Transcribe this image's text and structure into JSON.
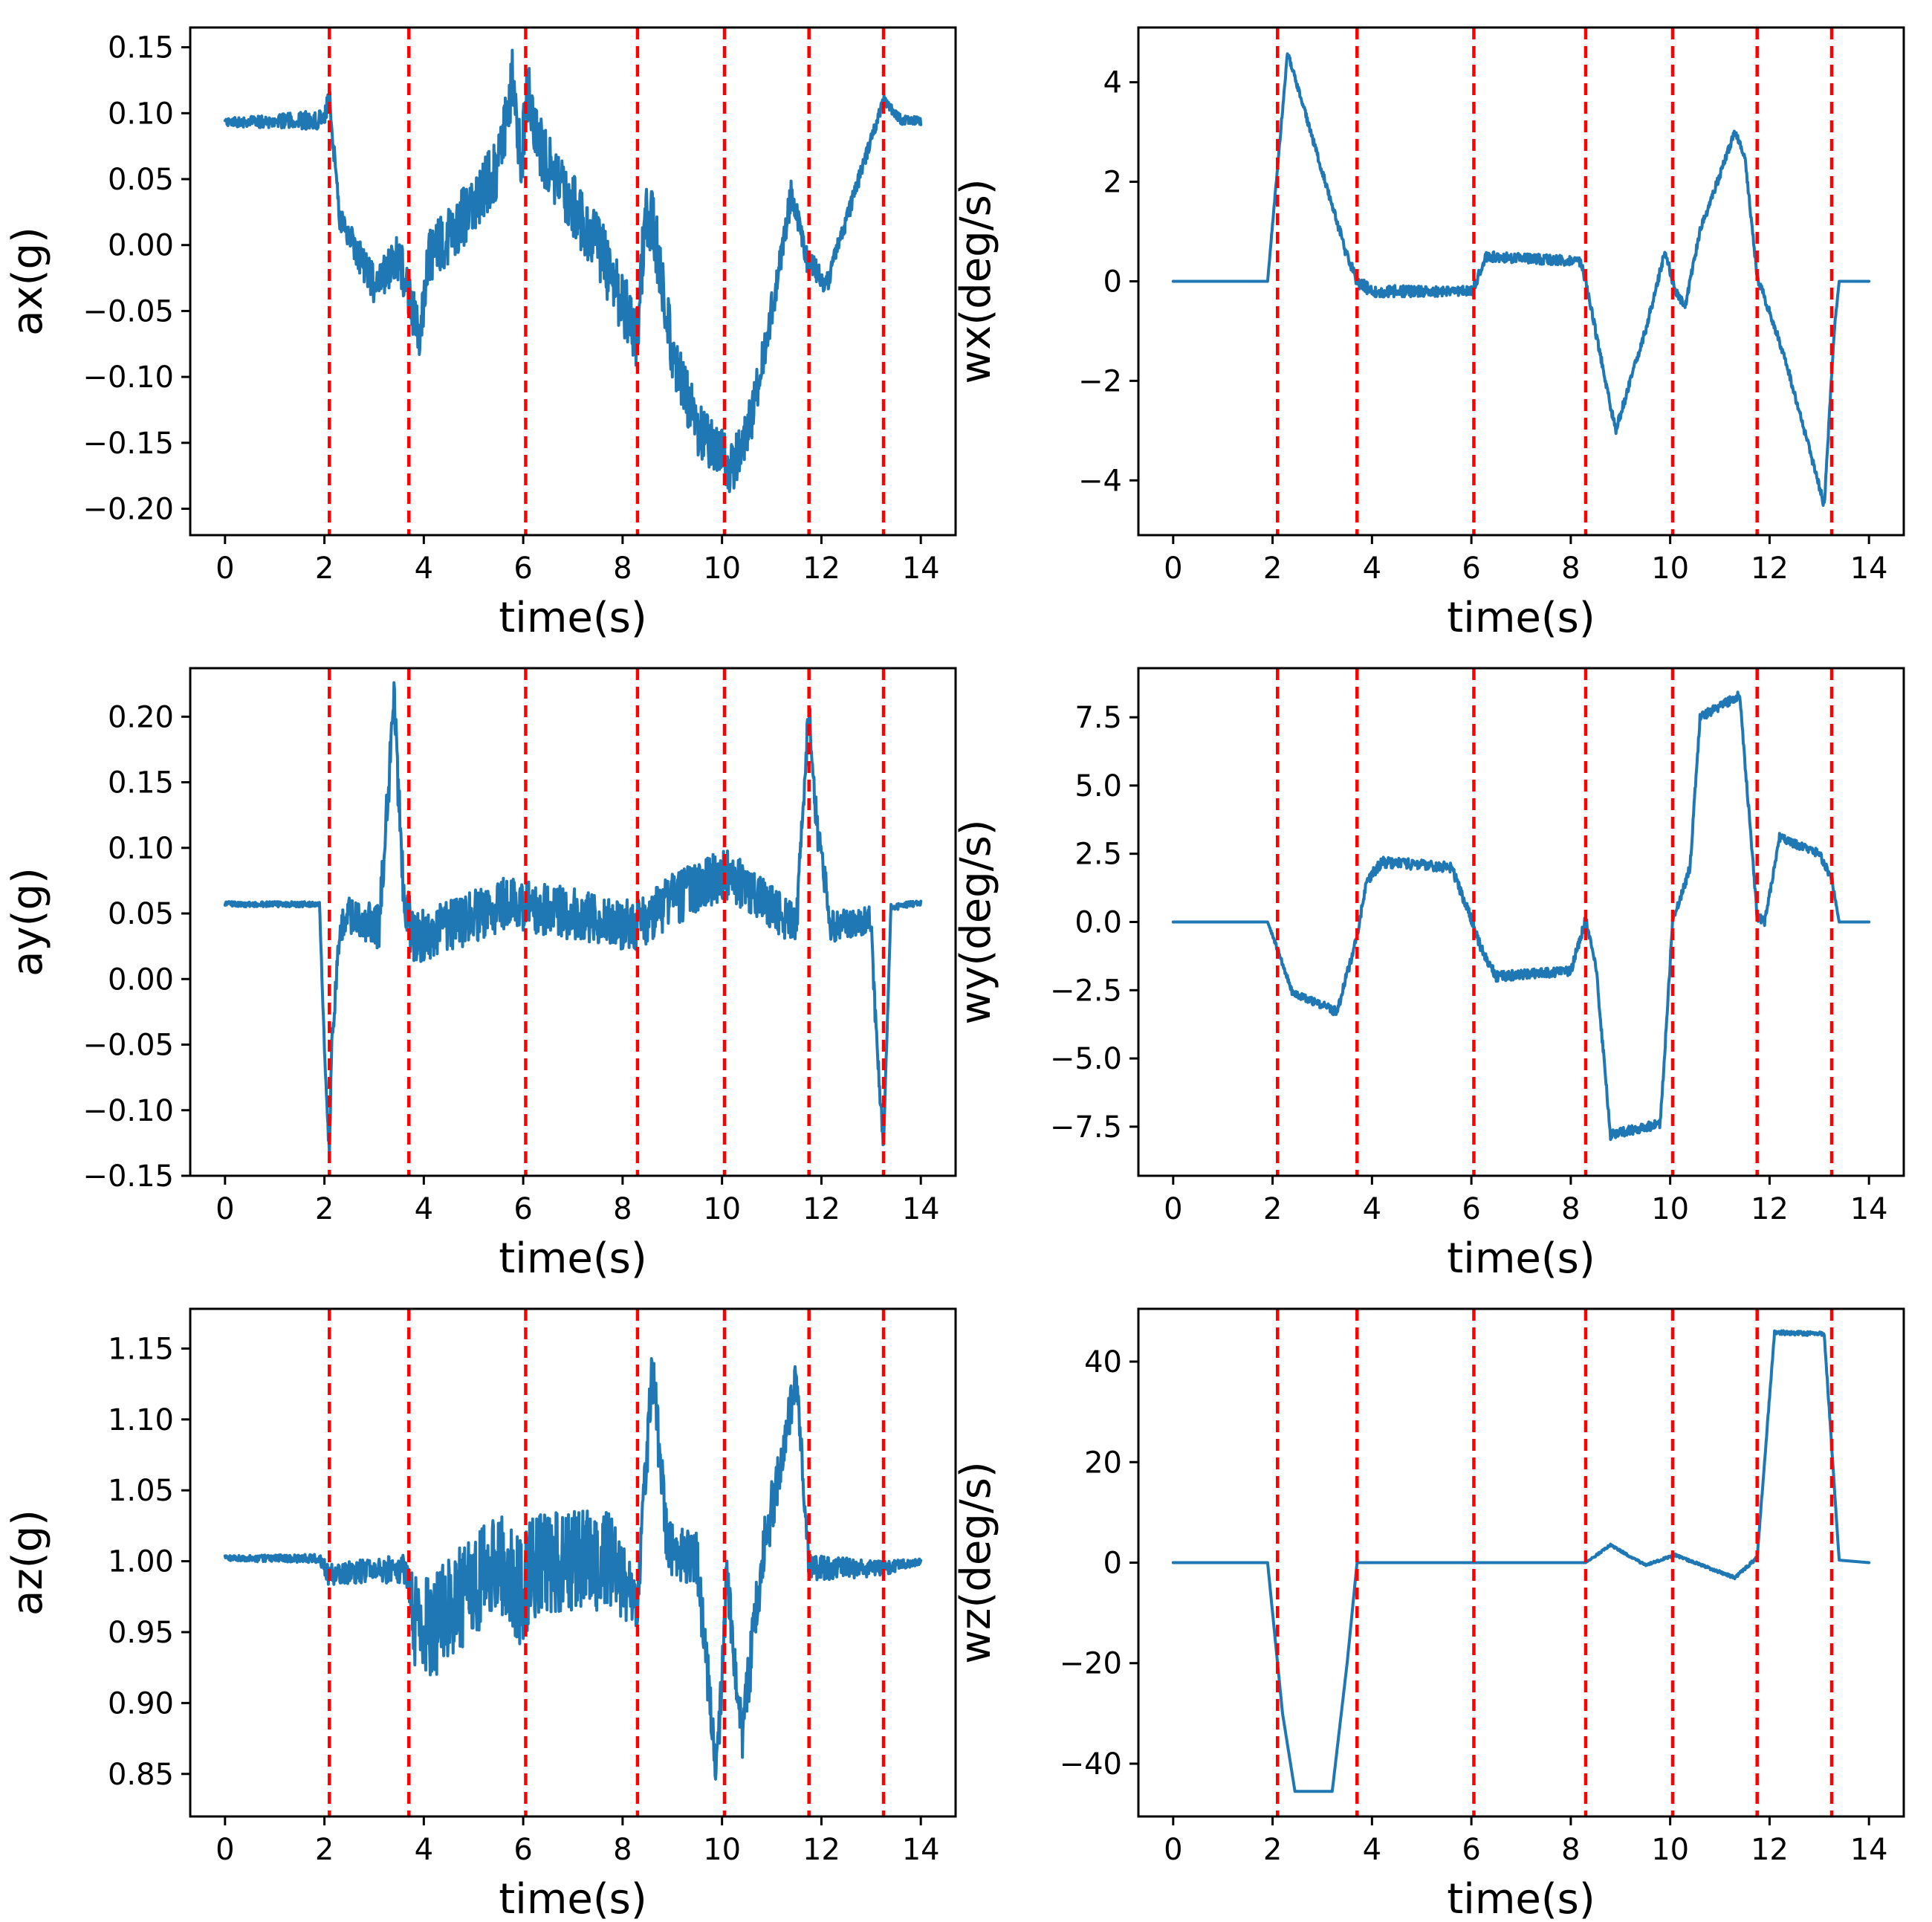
{
  "colors": {
    "series": "#1f77b4",
    "event_lines": "#ff0000",
    "axes": "#000000"
  },
  "chart_data": [
    {
      "id": "ax",
      "type": "line",
      "xlabel": "time(s)",
      "ylabel": "ax(g)",
      "xlim": [
        -0.7,
        14.7
      ],
      "ylim": [
        -0.22,
        0.165
      ],
      "xticks": [
        0,
        2,
        4,
        6,
        8,
        10,
        12,
        14
      ],
      "xtick_labels": [
        "0",
        "2",
        "4",
        "6",
        "8",
        "10",
        "12",
        "14"
      ],
      "yticks": [
        0.15,
        0.1,
        0.05,
        0.0,
        -0.05,
        -0.1,
        -0.15,
        -0.2
      ],
      "ytick_labels": [
        "0.15",
        "0.10",
        "0.05",
        "0.00",
        "−0.05",
        "−0.10",
        "−0.15",
        "−0.20"
      ],
      "noise": [
        [
          0,
          0.003
        ],
        [
          2.1,
          0.008
        ],
        [
          3.7,
          0.02
        ],
        [
          6.1,
          0.025
        ],
        [
          8.3,
          0.025
        ],
        [
          10.1,
          0.02
        ],
        [
          11.7,
          0.01
        ],
        [
          13.2,
          0.004
        ],
        [
          14,
          0.003
        ]
      ],
      "event_lines": [
        2.1,
        3.7,
        6.05,
        8.3,
        10.05,
        11.75,
        13.25
      ],
      "series": [
        {
          "name": "ax",
          "x": [
            0,
            1.0,
            2.0,
            2.1,
            2.3,
            3.0,
            3.5,
            3.7,
            3.9,
            4.1,
            5.0,
            5.5,
            5.8,
            5.95,
            6.1,
            6.25,
            6.5,
            7.5,
            8.3,
            8.45,
            8.6,
            9.0,
            9.5,
            10.0,
            10.2,
            10.6,
            11.0,
            11.4,
            11.7,
            12.1,
            13.0,
            13.25,
            13.6,
            14.0
          ],
          "y": [
            0.093,
            0.094,
            0.095,
            0.113,
            0.02,
            -0.03,
            -0.01,
            -0.04,
            -0.07,
            -0.01,
            0.03,
            0.06,
            0.13,
            0.06,
            0.12,
            0.085,
            0.06,
            0.0,
            -0.07,
            0.02,
            0.02,
            -0.08,
            -0.14,
            -0.16,
            -0.17,
            -0.13,
            -0.05,
            0.04,
            -0.01,
            -0.03,
            0.08,
            0.11,
            0.095,
            0.094
          ]
        }
      ]
    },
    {
      "id": "wx",
      "type": "line",
      "xlabel": "time(s)",
      "ylabel": "wx(deg/s)",
      "xlim": [
        -0.7,
        14.7
      ],
      "ylim": [
        -5.1,
        5.1
      ],
      "xticks": [
        0,
        2,
        4,
        6,
        8,
        10,
        12,
        14
      ],
      "xtick_labels": [
        "0",
        "2",
        "4",
        "6",
        "8",
        "10",
        "12",
        "14"
      ],
      "yticks": [
        4,
        2,
        0,
        -2,
        -4
      ],
      "ytick_labels": [
        "4",
        "2",
        "0",
        "−2",
        "−4"
      ],
      "noise": [
        [
          0,
          0
        ],
        [
          1.9,
          0
        ],
        [
          2.1,
          0.05
        ],
        [
          3.7,
          0.12
        ],
        [
          6.05,
          0.1
        ],
        [
          8.3,
          0.1
        ],
        [
          13.25,
          0.08
        ],
        [
          13.4,
          0
        ],
        [
          14,
          0
        ]
      ],
      "event_lines": [
        2.1,
        3.7,
        6.05,
        8.3,
        10.05,
        11.75,
        13.25
      ],
      "series": [
        {
          "name": "wx",
          "x": [
            0,
            1.9,
            2.3,
            3.5,
            3.7,
            4.0,
            6.0,
            6.1,
            6.3,
            8.2,
            8.3,
            8.7,
            8.9,
            9.5,
            9.9,
            10.1,
            10.3,
            10.6,
            11.3,
            11.5,
            11.75,
            12.3,
            13.1,
            13.3,
            13.4,
            14.0
          ],
          "y": [
            0,
            0,
            4.6,
            0.5,
            0,
            -0.2,
            -0.2,
            0,
            0.5,
            0.4,
            0,
            -2.0,
            -3.0,
            -1.0,
            0.6,
            -0.2,
            -0.5,
            1.0,
            3.0,
            2.5,
            0.1,
            -1.5,
            -4.5,
            -1.0,
            0,
            0
          ]
        }
      ]
    },
    {
      "id": "ay",
      "type": "line",
      "xlabel": "time(s)",
      "ylabel": "ay(g)",
      "xlim": [
        -0.7,
        14.7
      ],
      "ylim": [
        -0.15,
        0.237
      ],
      "xticks": [
        0,
        2,
        4,
        6,
        8,
        10,
        12,
        14
      ],
      "xtick_labels": [
        "0",
        "2",
        "4",
        "6",
        "8",
        "10",
        "12",
        "14"
      ],
      "yticks": [
        0.2,
        0.15,
        0.1,
        0.05,
        0.0,
        -0.05,
        -0.1,
        -0.15
      ],
      "ytick_labels": [
        "0.20",
        "0.15",
        "0.10",
        "0.05",
        "0.00",
        "−0.05",
        "−0.10",
        "−0.15"
      ],
      "noise": [
        [
          0,
          0.002
        ],
        [
          1.9,
          0.002
        ],
        [
          2.1,
          0.01
        ],
        [
          2.3,
          0.015
        ],
        [
          3.7,
          0.02
        ],
        [
          10.1,
          0.02
        ],
        [
          13.2,
          0.01
        ],
        [
          13.3,
          0.003
        ],
        [
          14,
          0.002
        ]
      ],
      "event_lines": [
        2.1,
        3.7,
        6.05,
        8.3,
        10.05,
        11.75,
        13.25
      ],
      "series": [
        {
          "name": "ay",
          "x": [
            0,
            1.0,
            1.9,
            2.0,
            2.1,
            2.15,
            2.3,
            2.5,
            3.1,
            3.4,
            3.6,
            3.8,
            4.5,
            5.8,
            6.1,
            7.0,
            8.3,
            9.0,
            10.1,
            10.8,
            11.5,
            11.75,
            11.9,
            12.2,
            13.0,
            13.1,
            13.25,
            13.4,
            14.0
          ],
          "y": [
            0.057,
            0.057,
            0.057,
            -0.05,
            -0.13,
            -0.05,
            0.04,
            0.05,
            0.04,
            0.21,
            0.06,
            0.03,
            0.04,
            0.06,
            0.055,
            0.05,
            0.04,
            0.06,
            0.08,
            0.06,
            0.04,
            0.21,
            0.12,
            0.04,
            0.045,
            -0.04,
            -0.125,
            0.055,
            0.058
          ]
        }
      ]
    },
    {
      "id": "wy",
      "type": "line",
      "xlabel": "time(s)",
      "ylabel": "wy(deg/s)",
      "xlim": [
        -0.7,
        14.7
      ],
      "ylim": [
        -9.3,
        9.3
      ],
      "xticks": [
        0,
        2,
        4,
        6,
        8,
        10,
        12,
        14
      ],
      "xtick_labels": [
        "0",
        "2",
        "4",
        "6",
        "8",
        "10",
        "12",
        "14"
      ],
      "yticks": [
        7.5,
        5.0,
        2.5,
        0.0,
        -2.5,
        -5.0,
        -7.5
      ],
      "ytick_labels": [
        "7.5",
        "5.0",
        "2.5",
        "0.0",
        "−2.5",
        "−5.0",
        "−7.5"
      ],
      "noise": [
        [
          0,
          0
        ],
        [
          1.9,
          0
        ],
        [
          2.1,
          0.1
        ],
        [
          3.7,
          0.2
        ],
        [
          13.25,
          0.15
        ],
        [
          13.4,
          0
        ],
        [
          14,
          0
        ]
      ],
      "event_lines": [
        2.1,
        3.7,
        6.05,
        8.3,
        10.05,
        11.75,
        13.25
      ],
      "series": [
        {
          "name": "wy",
          "x": [
            0,
            1.9,
            2.1,
            2.4,
            3.3,
            3.7,
            3.9,
            4.2,
            5.6,
            6.0,
            6.2,
            6.5,
            8.0,
            8.3,
            8.5,
            8.8,
            9.8,
            10.05,
            10.4,
            10.6,
            11.4,
            11.75,
            11.9,
            12.2,
            13.0,
            13.25,
            13.4,
            14.0
          ],
          "y": [
            0,
            0,
            -1.0,
            -2.6,
            -3.3,
            -0.5,
            1.5,
            2.2,
            2.0,
            0.1,
            -1.0,
            -2.0,
            -1.8,
            0.1,
            -1.5,
            -7.8,
            -7.4,
            0.0,
            2.0,
            7.5,
            8.3,
            0.2,
            0.0,
            3.1,
            2.5,
            1.6,
            0,
            0
          ]
        }
      ]
    },
    {
      "id": "az",
      "type": "line",
      "xlabel": "time(s)",
      "ylabel": "az(g)",
      "xlim": [
        -0.7,
        14.7
      ],
      "ylim": [
        0.82,
        1.178
      ],
      "xticks": [
        0,
        2,
        4,
        6,
        8,
        10,
        12,
        14
      ],
      "xtick_labels": [
        "0",
        "2",
        "4",
        "6",
        "8",
        "10",
        "12",
        "14"
      ],
      "yticks": [
        1.15,
        1.1,
        1.05,
        1.0,
        0.95,
        0.9,
        0.85
      ],
      "ytick_labels": [
        "1.15",
        "1.10",
        "1.05",
        "1.00",
        "0.95",
        "0.90",
        "0.85"
      ],
      "noise": [
        [
          0,
          0.002
        ],
        [
          1.9,
          0.003
        ],
        [
          2.1,
          0.008
        ],
        [
          3.6,
          0.01
        ],
        [
          3.9,
          0.04
        ],
        [
          5.5,
          0.035
        ],
        [
          6.1,
          0.04
        ],
        [
          7.8,
          0.035
        ],
        [
          8.3,
          0.02
        ],
        [
          11.0,
          0.02
        ],
        [
          11.7,
          0.01
        ],
        [
          13.3,
          0.005
        ],
        [
          14,
          0.002
        ]
      ],
      "event_lines": [
        2.1,
        3.7,
        6.05,
        8.3,
        10.05,
        11.75,
        13.25
      ],
      "series": [
        {
          "name": "az",
          "x": [
            0,
            1.9,
            2.1,
            3.6,
            3.9,
            5.5,
            6.0,
            6.2,
            7.8,
            8.3,
            8.6,
            8.9,
            9.5,
            9.9,
            10.1,
            10.4,
            10.8,
            11.5,
            11.75,
            13.25,
            14.0
          ],
          "y": [
            1.002,
            1.002,
            0.99,
            0.995,
            0.945,
            1.0,
            0.975,
            1.0,
            1.0,
            0.97,
            1.135,
            1.01,
            1.0,
            0.85,
            0.99,
            0.875,
            1.0,
            1.13,
            0.995,
            0.995,
            1.0
          ]
        }
      ]
    },
    {
      "id": "wz",
      "type": "line",
      "xlabel": "time(s)",
      "ylabel": "wz(deg/s)",
      "xlim": [
        -0.7,
        14.7
      ],
      "ylim": [
        -50.5,
        50.5
      ],
      "xticks": [
        0,
        2,
        4,
        6,
        8,
        10,
        12,
        14
      ],
      "xtick_labels": [
        "0",
        "2",
        "4",
        "6",
        "8",
        "10",
        "12",
        "14"
      ],
      "yticks": [
        40,
        20,
        0,
        -20,
        -40
      ],
      "ytick_labels": [
        "40",
        "20",
        "0",
        "−20",
        "−40"
      ],
      "noise": [
        [
          0,
          0
        ],
        [
          8.3,
          0
        ],
        [
          8.5,
          0.2
        ],
        [
          11.7,
          0.3
        ],
        [
          12.0,
          0.4
        ],
        [
          13.2,
          0.4
        ],
        [
          13.4,
          0
        ],
        [
          14,
          0
        ]
      ],
      "event_lines": [
        2.1,
        3.7,
        6.05,
        8.3,
        10.05,
        11.75,
        13.25
      ],
      "series": [
        {
          "name": "wz",
          "x": [
            0,
            1.9,
            2.2,
            2.45,
            3.2,
            3.5,
            3.7,
            8.3,
            8.8,
            9.5,
            10.1,
            11.3,
            11.75,
            12.1,
            13.1,
            13.4,
            14.0
          ],
          "y": [
            0,
            0,
            -30,
            -45.5,
            -45.5,
            -20,
            0,
            0,
            3.5,
            -0.5,
            1.5,
            -3.0,
            1.0,
            45.8,
            45.5,
            0.5,
            0
          ]
        }
      ]
    }
  ]
}
